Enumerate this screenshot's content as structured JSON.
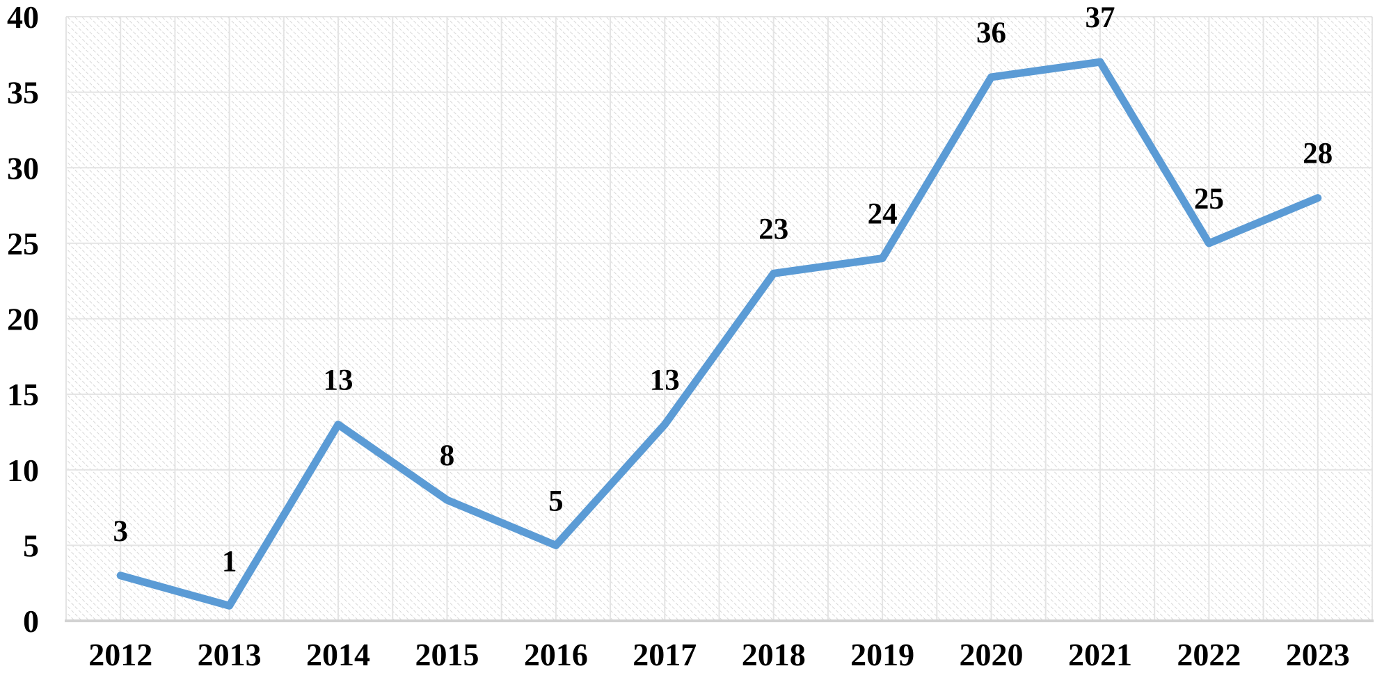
{
  "chart_data": {
    "type": "line",
    "categories": [
      "2012",
      "2013",
      "2014",
      "2015",
      "2016",
      "2017",
      "2018",
      "2019",
      "2020",
      "2021",
      "2022",
      "2023"
    ],
    "values": [
      3,
      1,
      13,
      8,
      5,
      13,
      23,
      24,
      36,
      37,
      25,
      28
    ],
    "data_labels": [
      "3",
      "1",
      "13",
      "8",
      "5",
      "13",
      "23",
      "24",
      "36",
      "37",
      "25",
      "28"
    ],
    "title": "",
    "xlabel": "",
    "ylabel": "",
    "ylim": [
      0,
      40
    ],
    "y_ticks": [
      0,
      5,
      10,
      15,
      20,
      25,
      30,
      35,
      40
    ],
    "grid": "horizontal-major-and-vertical-half-category",
    "legend": "none",
    "plot_area_fill": "light-diagonal-hatch"
  },
  "colors": {
    "series_line": "#5B9BD5",
    "gridline": "#e4e4e4",
    "axis_line": "#d2d2d2",
    "hatch_dot": "#d7d7d7",
    "label_text": "#000000",
    "background": "#ffffff"
  }
}
